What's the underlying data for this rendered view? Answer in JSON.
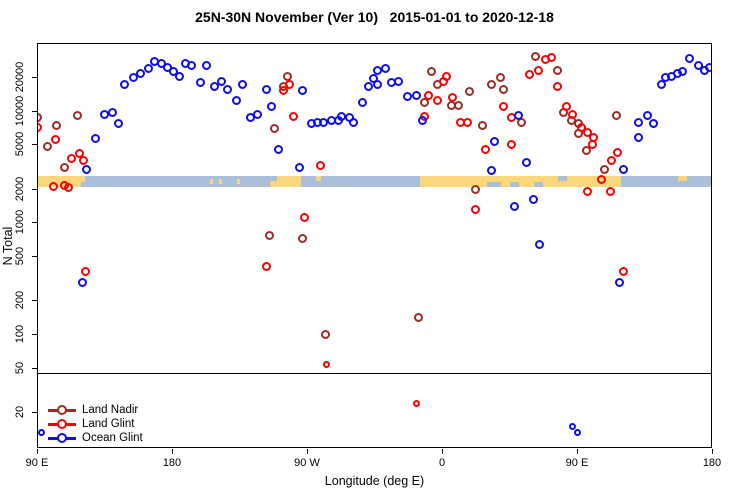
{
  "title": "25N-30N November (Ver 10)   2015-01-01 to 2020-12-18",
  "axes": {
    "x": {
      "label": "Longitude (deg E)",
      "ticks": [
        {
          "lon": 90,
          "label": "90 E"
        },
        {
          "lon": 180,
          "label": "180"
        },
        {
          "lon": 270,
          "label": "90 W"
        },
        {
          "lon": 360,
          "label": "0"
        },
        {
          "lon": 450,
          "label": "90 E"
        },
        {
          "lon": 540,
          "label": "180"
        }
      ]
    },
    "y": {
      "label": "N Total",
      "scale": "log",
      "ticks": [
        20,
        50,
        100,
        200,
        500,
        1000,
        2000,
        5000,
        10000,
        20000
      ]
    }
  },
  "legend": {
    "items": [
      {
        "label": "Land Nadir",
        "series": "land_nadir"
      },
      {
        "label": "Land Glint",
        "series": "land_glint"
      },
      {
        "label": "Ocean Glint",
        "series": "ocean_glint"
      }
    ]
  },
  "colors": {
    "land_nadir": "#9C2B23",
    "land_glint": "#FC0000",
    "ocean_glint": "#0D0DF0",
    "map_land": "#FAD67D",
    "map_ocean": "#ABBFD9",
    "axis": "#000000"
  },
  "chart_data": {
    "type": "scatter",
    "x_range_deg_east": [
      90,
      540
    ],
    "y_log_range": [
      10,
      40000
    ],
    "reference_line_n": 45,
    "map_band": {
      "description": "25N-30N land/ocean strip drawn across plot near N=2200",
      "segments": [
        {
          "from": 90,
          "to": 122,
          "type": "land"
        },
        {
          "from": 122,
          "to": 245,
          "type": "ocean"
        },
        {
          "from": 245,
          "to": 266,
          "type": "land"
        },
        {
          "from": 266,
          "to": 345,
          "type": "ocean"
        },
        {
          "from": 345,
          "to": 479,
          "type": "land"
        },
        {
          "from": 479,
          "to": 540,
          "type": "ocean"
        }
      ],
      "features": [
        {
          "from": 119.5,
          "to": 122,
          "type": "ocean",
          "part": "bottom"
        },
        {
          "from": 205,
          "to": 207,
          "type": "land",
          "part": "mid"
        },
        {
          "from": 211,
          "to": 213,
          "type": "land",
          "part": "mid"
        },
        {
          "from": 223,
          "to": 225,
          "type": "land",
          "part": "mid"
        },
        {
          "from": 245,
          "to": 250,
          "type": "ocean",
          "part": "top"
        },
        {
          "from": 276,
          "to": 279,
          "type": "land",
          "part": "top"
        },
        {
          "from": 390,
          "to": 399,
          "type": "ocean",
          "part": "bottom"
        },
        {
          "from": 405,
          "to": 411,
          "type": "ocean",
          "part": "bottom"
        },
        {
          "from": 421,
          "to": 427,
          "type": "ocean",
          "part": "bottom"
        },
        {
          "from": 437,
          "to": 443,
          "type": "ocean",
          "part": "top"
        },
        {
          "from": 517,
          "to": 523,
          "type": "land",
          "part": "top"
        }
      ]
    },
    "series": [
      {
        "name": "land_nadir",
        "points": [
          [
            90,
            8600
          ],
          [
            103,
            7400
          ],
          [
            117,
            9100
          ],
          [
            97,
            4800
          ],
          [
            108,
            3100
          ],
          [
            257,
            20400
          ],
          [
            254,
            16600
          ],
          [
            248,
            6900
          ],
          [
            245,
            770
          ],
          [
            267,
            710
          ],
          [
            353,
            22200
          ],
          [
            357,
            17000
          ],
          [
            348,
            11900
          ],
          [
            366,
            11200
          ],
          [
            371,
            11200
          ],
          [
            378,
            14700
          ],
          [
            387,
            7400
          ],
          [
            393,
            17300
          ],
          [
            399,
            19600
          ],
          [
            401,
            15600
          ],
          [
            413,
            7900
          ],
          [
            422,
            30700
          ],
          [
            382,
            1950
          ],
          [
            344,
            140
          ],
          [
            282,
            100
          ],
          [
            437,
            23100
          ],
          [
            441,
            9700
          ],
          [
            446,
            8100
          ],
          [
            451,
            7600
          ],
          [
            451,
            6200
          ],
          [
            456,
            4400
          ],
          [
            468,
            3000
          ],
          [
            476,
            9100
          ]
        ]
      },
      {
        "name": "land_glint",
        "points": [
          [
            90,
            7000
          ],
          [
            102,
            5500
          ],
          [
            113,
            3700
          ],
          [
            118,
            4100
          ],
          [
            121,
            3600
          ],
          [
            101,
            2100
          ],
          [
            108,
            2150
          ],
          [
            111,
            2050
          ],
          [
            122,
            360
          ],
          [
            258,
            17300
          ],
          [
            254,
            15000
          ],
          [
            261,
            8800
          ],
          [
            279,
            3200
          ],
          [
            268,
            1100
          ],
          [
            243,
            400
          ],
          [
            283,
            53
          ],
          [
            348,
            8900
          ],
          [
            351,
            13800
          ],
          [
            357,
            12400
          ],
          [
            363,
            20400
          ],
          [
            361,
            18400
          ],
          [
            367,
            13200
          ],
          [
            372,
            7900
          ],
          [
            377,
            7900
          ],
          [
            401,
            11000
          ],
          [
            406,
            8600
          ],
          [
            389,
            4500
          ],
          [
            406,
            5000
          ],
          [
            382,
            1300
          ],
          [
            343,
            24
          ],
          [
            418,
            20900
          ],
          [
            424,
            23100
          ],
          [
            429,
            28400
          ],
          [
            433,
            29700
          ],
          [
            437,
            16600
          ],
          [
            443,
            11000
          ],
          [
            447,
            9300
          ],
          [
            453,
            7100
          ],
          [
            457,
            6400
          ],
          [
            461,
            5800
          ],
          [
            460,
            5000
          ],
          [
            466,
            2400
          ],
          [
            473,
            3600
          ],
          [
            477,
            4200
          ],
          [
            457,
            1900
          ],
          [
            472,
            1900
          ],
          [
            481,
            360
          ]
        ]
      },
      {
        "name": "ocean_glint",
        "points": [
          [
            148,
            17000
          ],
          [
            154,
            19600
          ],
          [
            159,
            21700
          ],
          [
            164,
            23600
          ],
          [
            168,
            27800
          ],
          [
            173,
            26200
          ],
          [
            177,
            24100
          ],
          [
            181,
            22200
          ],
          [
            185,
            20400
          ],
          [
            189,
            26200
          ],
          [
            193,
            25100
          ],
          [
            199,
            18000
          ],
          [
            203,
            25600
          ],
          [
            208,
            16600
          ],
          [
            213,
            18400
          ],
          [
            217,
            15300
          ],
          [
            223,
            12400
          ],
          [
            227,
            17000
          ],
          [
            232,
            8600
          ],
          [
            237,
            9300
          ],
          [
            243,
            15300
          ],
          [
            246,
            11000
          ],
          [
            251,
            4500
          ],
          [
            265,
            3100
          ],
          [
            267,
            15000
          ],
          [
            123,
            3000
          ],
          [
            129,
            5600
          ],
          [
            135,
            9300
          ],
          [
            140,
            9700
          ],
          [
            144,
            7700
          ],
          [
            120,
            290
          ],
          [
            273,
            7700
          ],
          [
            277,
            7900
          ],
          [
            281,
            7900
          ],
          [
            286,
            8100
          ],
          [
            291,
            8200
          ],
          [
            293,
            8900
          ],
          [
            298,
            8600
          ],
          [
            301,
            7900
          ],
          [
            307,
            11900
          ],
          [
            311,
            16600
          ],
          [
            314,
            19200
          ],
          [
            317,
            23100
          ],
          [
            317,
            17000
          ],
          [
            322,
            23600
          ],
          [
            326,
            17700
          ],
          [
            331,
            18400
          ],
          [
            337,
            13500
          ],
          [
            343,
            13800
          ],
          [
            347,
            8200
          ],
          [
            393,
            2900
          ],
          [
            395,
            5300
          ],
          [
            411,
            9100
          ],
          [
            416,
            3400
          ],
          [
            408,
            1400
          ],
          [
            421,
            1600
          ],
          [
            425,
            630
          ],
          [
            478,
            290
          ],
          [
            481,
            3000
          ],
          [
            491,
            5800
          ],
          [
            491,
            7900
          ],
          [
            497,
            9100
          ],
          [
            501,
            7600
          ],
          [
            506,
            17000
          ],
          [
            509,
            19600
          ],
          [
            513,
            20400
          ],
          [
            517,
            21300
          ],
          [
            520,
            22600
          ],
          [
            525,
            29000
          ],
          [
            531,
            25100
          ],
          [
            535,
            23100
          ],
          [
            538,
            24100
          ],
          [
            93,
            13
          ],
          [
            447,
            15
          ],
          [
            450,
            13
          ]
        ]
      }
    ]
  }
}
